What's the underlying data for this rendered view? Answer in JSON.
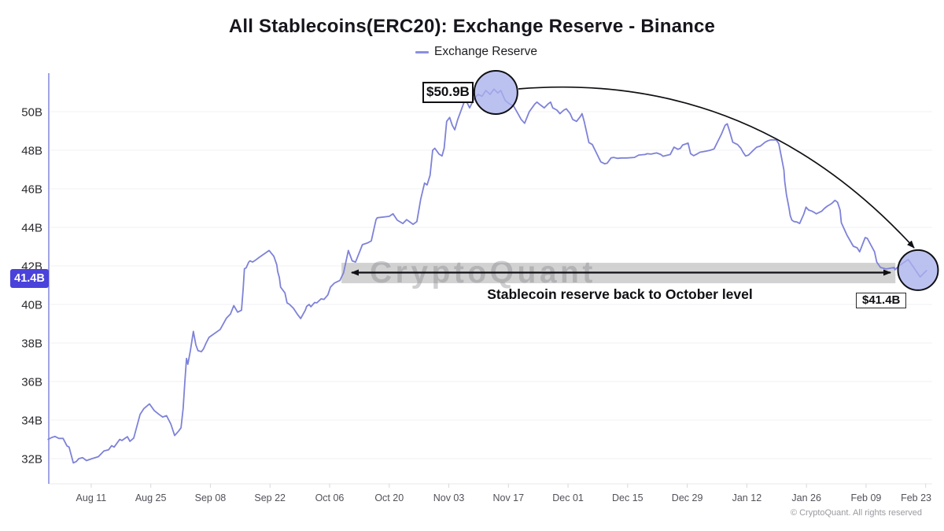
{
  "title": "All Stablecoins(ERC20): Exchange Reserve - Binance",
  "legend": {
    "series_label": "Exchange Reserve"
  },
  "watermark": "CryptoQuant",
  "footer": "© CryptoQuant. All rights reserved",
  "y_axis": {
    "current_value_badge": "41.4B"
  },
  "annotations": {
    "peak_callout": "$50.9B",
    "end_callout": "$41.4B",
    "band_caption": "Stablecoin reserve back to October level"
  },
  "chart_data": {
    "type": "line",
    "title": "All Stablecoins(ERC20): Exchange Reserve - Binance",
    "xlabel": "",
    "ylabel": "",
    "ylim": [
      31.5,
      52.2
    ],
    "grid": "faint horizontal gridlines",
    "legend_position": "top center",
    "y_ticks": [
      {
        "label": "50B",
        "value": 50
      },
      {
        "label": "48B",
        "value": 48
      },
      {
        "label": "46B",
        "value": 46
      },
      {
        "label": "44B",
        "value": 44
      },
      {
        "label": "42B",
        "value": 42
      },
      {
        "label": "40B",
        "value": 40
      },
      {
        "label": "38B",
        "value": 38
      },
      {
        "label": "36B",
        "value": 36
      },
      {
        "label": "34B",
        "value": 34
      },
      {
        "label": "32B",
        "value": 32
      }
    ],
    "x_ticks": [
      {
        "label": "Aug 11",
        "day": 0
      },
      {
        "label": "Aug 25",
        "day": 14
      },
      {
        "label": "Sep 08",
        "day": 28
      },
      {
        "label": "Sep 22",
        "day": 42
      },
      {
        "label": "Oct 06",
        "day": 56
      },
      {
        "label": "Oct 20",
        "day": 70
      },
      {
        "label": "Nov 03",
        "day": 84
      },
      {
        "label": "Nov 17",
        "day": 98
      },
      {
        "label": "Dec 01",
        "day": 112
      },
      {
        "label": "Dec 15",
        "day": 126
      },
      {
        "label": "Dec 29",
        "day": 140
      },
      {
        "label": "Jan 12",
        "day": 154
      },
      {
        "label": "Jan 26",
        "day": 168
      },
      {
        "label": "Feb 09",
        "day": 182
      },
      {
        "label": "Feb 23",
        "day": 196
      }
    ],
    "series": [
      {
        "name": "Exchange Reserve",
        "color": "#7e82d8",
        "units": "billions USD",
        "x_units": "days since Aug 11",
        "points": [
          [
            -10.1,
            33.0
          ],
          [
            -9.2,
            33.1
          ],
          [
            -8.5,
            33.15
          ],
          [
            -7.6,
            33.05
          ],
          [
            -6.6,
            33.05
          ],
          [
            -5.7,
            32.66
          ],
          [
            -5.2,
            32.6
          ],
          [
            -4.2,
            31.78
          ],
          [
            -3.5,
            31.85
          ],
          [
            -2.9,
            32.0
          ],
          [
            -2.0,
            32.05
          ],
          [
            -1.1,
            31.9
          ],
          [
            0.2,
            32.0
          ],
          [
            1.7,
            32.1
          ],
          [
            3.0,
            32.4
          ],
          [
            4.1,
            32.46
          ],
          [
            4.8,
            32.67
          ],
          [
            5.4,
            32.6
          ],
          [
            6.7,
            33.0
          ],
          [
            7.2,
            32.94
          ],
          [
            8.5,
            33.14
          ],
          [
            9.1,
            32.9
          ],
          [
            10.0,
            33.07
          ],
          [
            10.4,
            33.4
          ],
          [
            11.5,
            34.3
          ],
          [
            12.4,
            34.6
          ],
          [
            13.7,
            34.84
          ],
          [
            14.8,
            34.5
          ],
          [
            15.9,
            34.3
          ],
          [
            16.8,
            34.16
          ],
          [
            17.7,
            34.23
          ],
          [
            18.7,
            33.8
          ],
          [
            19.6,
            33.2
          ],
          [
            20.5,
            33.42
          ],
          [
            21.1,
            33.6
          ],
          [
            21.6,
            34.6
          ],
          [
            22.0,
            36.0
          ],
          [
            22.4,
            37.2
          ],
          [
            22.7,
            36.9
          ],
          [
            23.3,
            37.6
          ],
          [
            24.0,
            38.6
          ],
          [
            24.6,
            37.9
          ],
          [
            25.1,
            37.6
          ],
          [
            25.9,
            37.55
          ],
          [
            26.4,
            37.7
          ],
          [
            27.0,
            38.0
          ],
          [
            27.7,
            38.3
          ],
          [
            29.0,
            38.5
          ],
          [
            30.3,
            38.7
          ],
          [
            31.8,
            39.3
          ],
          [
            32.7,
            39.5
          ],
          [
            33.5,
            39.94
          ],
          [
            34.4,
            39.6
          ],
          [
            35.3,
            39.7
          ],
          [
            35.7,
            40.8
          ],
          [
            36.0,
            41.85
          ],
          [
            36.4,
            41.9
          ],
          [
            37.0,
            42.2
          ],
          [
            37.3,
            42.26
          ],
          [
            37.9,
            42.2
          ],
          [
            38.6,
            42.3
          ],
          [
            39.5,
            42.45
          ],
          [
            40.5,
            42.6
          ],
          [
            41.8,
            42.8
          ],
          [
            42.9,
            42.5
          ],
          [
            43.6,
            42.05
          ],
          [
            43.8,
            41.7
          ],
          [
            44.2,
            41.4
          ],
          [
            44.5,
            40.9
          ],
          [
            45.5,
            40.6
          ],
          [
            46.0,
            40.08
          ],
          [
            46.6,
            40.0
          ],
          [
            47.5,
            39.8
          ],
          [
            48.4,
            39.5
          ],
          [
            49.2,
            39.27
          ],
          [
            50.3,
            39.7
          ],
          [
            50.6,
            39.9
          ],
          [
            51.2,
            40.0
          ],
          [
            51.6,
            39.88
          ],
          [
            52.5,
            40.1
          ],
          [
            53.0,
            40.08
          ],
          [
            54.0,
            40.29
          ],
          [
            54.7,
            40.26
          ],
          [
            55.6,
            40.5
          ],
          [
            56.2,
            40.9
          ],
          [
            57.1,
            41.1
          ],
          [
            57.7,
            41.17
          ],
          [
            58.4,
            41.24
          ],
          [
            59.3,
            41.65
          ],
          [
            60.4,
            42.8
          ],
          [
            61.3,
            42.26
          ],
          [
            62.1,
            42.2
          ],
          [
            63.7,
            43.1
          ],
          [
            65.0,
            43.2
          ],
          [
            65.8,
            43.3
          ],
          [
            66.9,
            44.4
          ],
          [
            67.2,
            44.5
          ],
          [
            70.0,
            44.57
          ],
          [
            70.9,
            44.7
          ],
          [
            71.9,
            44.37
          ],
          [
            73.2,
            44.2
          ],
          [
            74.1,
            44.4
          ],
          [
            75.6,
            44.16
          ],
          [
            76.5,
            44.3
          ],
          [
            77.4,
            45.46
          ],
          [
            78.3,
            46.3
          ],
          [
            78.9,
            46.2
          ],
          [
            79.6,
            46.7
          ],
          [
            80.2,
            48.0
          ],
          [
            80.7,
            48.1
          ],
          [
            81.7,
            47.8
          ],
          [
            82.4,
            47.7
          ],
          [
            82.9,
            48.1
          ],
          [
            83.5,
            49.5
          ],
          [
            84.2,
            49.7
          ],
          [
            84.8,
            49.3
          ],
          [
            85.4,
            49.06
          ],
          [
            86.1,
            49.6
          ],
          [
            87.6,
            50.5
          ],
          [
            88.1,
            50.56
          ],
          [
            88.9,
            50.2
          ],
          [
            90.0,
            50.7
          ],
          [
            90.9,
            50.9
          ],
          [
            91.8,
            50.8
          ],
          [
            92.7,
            51.1
          ],
          [
            93.7,
            50.9
          ],
          [
            94.6,
            51.17
          ],
          [
            95.5,
            50.97
          ],
          [
            96.2,
            51.1
          ],
          [
            97.2,
            50.6
          ],
          [
            97.7,
            50.5
          ],
          [
            98.3,
            50.4
          ],
          [
            99.2,
            50.3
          ],
          [
            100.1,
            49.95
          ],
          [
            101.0,
            49.6
          ],
          [
            101.8,
            49.4
          ],
          [
            102.9,
            50.0
          ],
          [
            104.2,
            50.4
          ],
          [
            104.7,
            50.5
          ],
          [
            105.5,
            50.35
          ],
          [
            106.4,
            50.2
          ],
          [
            107.3,
            50.4
          ],
          [
            107.9,
            50.5
          ],
          [
            108.4,
            50.2
          ],
          [
            109.4,
            50.08
          ],
          [
            110.1,
            49.9
          ],
          [
            111.0,
            50.08
          ],
          [
            111.6,
            50.15
          ],
          [
            112.5,
            49.9
          ],
          [
            113.1,
            49.6
          ],
          [
            114.0,
            49.5
          ],
          [
            114.9,
            49.75
          ],
          [
            115.3,
            49.9
          ],
          [
            115.8,
            49.5
          ],
          [
            116.4,
            48.9
          ],
          [
            116.9,
            48.4
          ],
          [
            117.7,
            48.3
          ],
          [
            118.8,
            47.8
          ],
          [
            119.7,
            47.4
          ],
          [
            120.6,
            47.3
          ],
          [
            121.2,
            47.33
          ],
          [
            122.1,
            47.6
          ],
          [
            122.7,
            47.63
          ],
          [
            123.6,
            47.58
          ],
          [
            124.5,
            47.6
          ],
          [
            125.8,
            47.6
          ],
          [
            127.6,
            47.63
          ],
          [
            128.6,
            47.75
          ],
          [
            130.1,
            47.78
          ],
          [
            130.6,
            47.82
          ],
          [
            131.5,
            47.8
          ],
          [
            132.8,
            47.86
          ],
          [
            133.8,
            47.78
          ],
          [
            134.3,
            47.69
          ],
          [
            136.0,
            47.78
          ],
          [
            136.9,
            48.16
          ],
          [
            137.8,
            48.05
          ],
          [
            138.4,
            48.1
          ],
          [
            138.9,
            48.27
          ],
          [
            139.7,
            48.33
          ],
          [
            140.2,
            48.37
          ],
          [
            140.8,
            47.82
          ],
          [
            141.5,
            47.72
          ],
          [
            142.4,
            47.82
          ],
          [
            143.0,
            47.9
          ],
          [
            144.3,
            47.95
          ],
          [
            145.4,
            48.0
          ],
          [
            146.3,
            48.07
          ],
          [
            147.2,
            48.47
          ],
          [
            148.0,
            48.82
          ],
          [
            148.9,
            49.3
          ],
          [
            149.4,
            49.37
          ],
          [
            150.0,
            48.96
          ],
          [
            150.7,
            48.42
          ],
          [
            151.3,
            48.35
          ],
          [
            151.8,
            48.3
          ],
          [
            152.6,
            48.1
          ],
          [
            153.1,
            47.9
          ],
          [
            153.7,
            47.7
          ],
          [
            154.4,
            47.75
          ],
          [
            155.3,
            47.95
          ],
          [
            156.3,
            48.16
          ],
          [
            157.2,
            48.22
          ],
          [
            158.3,
            48.42
          ],
          [
            159.0,
            48.5
          ],
          [
            159.6,
            48.54
          ],
          [
            160.9,
            48.54
          ],
          [
            161.5,
            48.34
          ],
          [
            162.0,
            47.78
          ],
          [
            162.7,
            46.97
          ],
          [
            162.9,
            46.4
          ],
          [
            163.3,
            45.7
          ],
          [
            163.9,
            45.0
          ],
          [
            164.2,
            44.6
          ],
          [
            164.6,
            44.37
          ],
          [
            165.1,
            44.3
          ],
          [
            165.7,
            44.28
          ],
          [
            166.4,
            44.2
          ],
          [
            167.4,
            44.7
          ],
          [
            167.9,
            45.05
          ],
          [
            168.5,
            44.9
          ],
          [
            169.2,
            44.85
          ],
          [
            169.8,
            44.78
          ],
          [
            170.3,
            44.7
          ],
          [
            171.6,
            44.84
          ],
          [
            172.2,
            44.98
          ],
          [
            172.9,
            45.1
          ],
          [
            173.5,
            45.18
          ],
          [
            174.0,
            45.25
          ],
          [
            174.7,
            45.4
          ],
          [
            175.3,
            45.3
          ],
          [
            175.9,
            44.9
          ],
          [
            176.2,
            44.24
          ],
          [
            177.5,
            43.6
          ],
          [
            179.0,
            43.02
          ],
          [
            179.9,
            42.94
          ],
          [
            180.5,
            42.73
          ],
          [
            181.8,
            43.47
          ],
          [
            182.3,
            43.43
          ],
          [
            184.0,
            42.73
          ],
          [
            184.5,
            42.2
          ],
          [
            185.4,
            41.92
          ],
          [
            186.7,
            41.84
          ],
          [
            188.6,
            41.92
          ],
          [
            188.8,
            41.8
          ],
          [
            189.7,
            42.0
          ],
          [
            191.9,
            42.33
          ],
          [
            194.7,
            41.43
          ],
          [
            196.2,
            41.76
          ]
        ]
      }
    ],
    "annotations": {
      "peak": {
        "label": "$50.9B",
        "day": 95.05,
        "value": 50.9,
        "circle_value": 51.0
      },
      "end": {
        "label": "$41.4B",
        "day": 194.2,
        "value": 41.4,
        "circle_value": 41.78
      },
      "band": {
        "caption": "Stablecoin reserve back to October level",
        "day_start": 58.8,
        "day_end": 188.9,
        "value_top": 42.16,
        "value_bottom": 41.1
      },
      "current_badge": {
        "label": "41.4B",
        "value": 41.4
      }
    }
  }
}
